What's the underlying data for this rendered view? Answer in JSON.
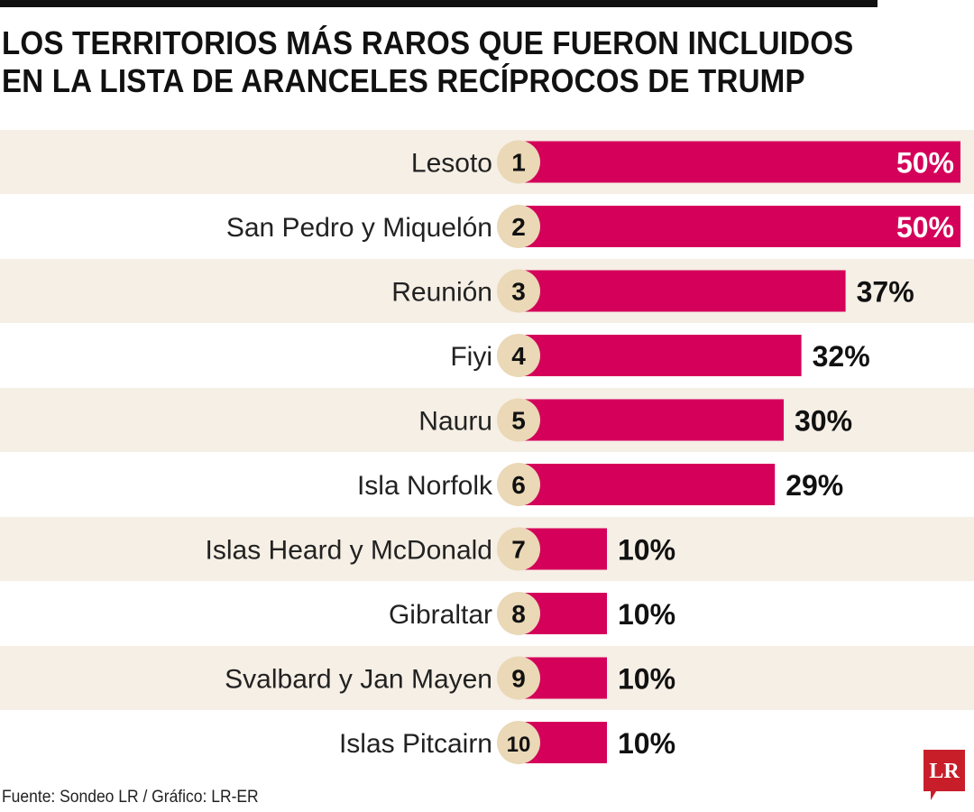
{
  "title": {
    "line1": "LOS TERRITORIOS MÁS RAROS QUE FUERON INCLUIDOS",
    "line2": "EN LA LISTA DE ARANCELES RECÍPROCOS DE TRUMP"
  },
  "source": "Fuente: Sondeo LR / Gráfico: LR-ER",
  "logo": {
    "text": "LR",
    "color": "#c81e2a"
  },
  "colors": {
    "bar": "#d4005a",
    "band": "#f6efe5",
    "badge": "#ead8b6",
    "text": "#111111"
  },
  "chart_data": {
    "type": "bar",
    "orientation": "horizontal",
    "categories": [
      "Lesoto",
      "San Pedro y Miquelón",
      "Reunión",
      "Fiyi",
      "Nauru",
      "Isla Norfolk",
      "Islas Heard y McDonald",
      "Gibraltar",
      "Svalbard y Jan Mayen",
      "Islas Pitcairn"
    ],
    "ranks": [
      "1",
      "2",
      "3",
      "4",
      "5",
      "6",
      "7",
      "8",
      "9",
      "10"
    ],
    "values": [
      50,
      50,
      37,
      32,
      30,
      29,
      10,
      10,
      10,
      10
    ],
    "labels": [
      "50%",
      "50%",
      "37%",
      "32%",
      "30%",
      "29%",
      "10%",
      "10%",
      "10%",
      "10%"
    ],
    "title": "LOS TERRITORIOS MÁS RAROS QUE FUERON INCLUIDOS EN LA LISTA DE ARANCELES RECÍPROCOS DE TRUMP",
    "xlim": [
      0,
      50
    ],
    "grid": false,
    "legend": "none"
  }
}
